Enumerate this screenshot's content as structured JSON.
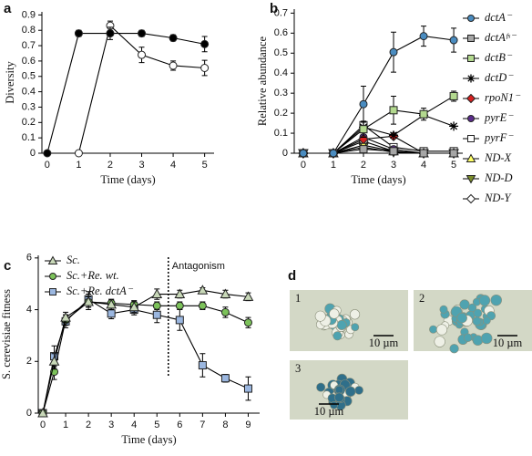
{
  "chart_data": [
    {
      "type": "line",
      "label": "a",
      "xlabel": "Time (days)",
      "ylabel": "Diversity",
      "x": [
        0,
        1,
        2,
        3,
        4,
        5
      ],
      "xlim": [
        -0.17,
        5.3
      ],
      "xticks": [
        0,
        1,
        2,
        3,
        4,
        5
      ],
      "ylim": [
        0,
        0.92
      ],
      "yticks": [
        0,
        0.1,
        0.2,
        0.3,
        0.4,
        0.5,
        0.6,
        0.7,
        0.8,
        0.9
      ],
      "series": [
        {
          "color": "#000000",
          "marker": "circle",
          "values": [
            0,
            0.78,
            0.78,
            0.78,
            0.75,
            0.71
          ],
          "errors": [
            0,
            0.02,
            0.04,
            0.02,
            0.02,
            0.05
          ]
        },
        {
          "color": "#ffffff",
          "marker": "circle",
          "values": [
            null,
            0,
            0.83,
            0.64,
            0.57,
            0.555
          ],
          "errors": [
            null,
            0,
            0.03,
            0.05,
            0.03,
            0.05
          ]
        }
      ]
    },
    {
      "type": "line",
      "label": "b",
      "xlabel": "Time (days)",
      "ylabel": "Relative abundance",
      "x": [
        0,
        1,
        2,
        3,
        4,
        5
      ],
      "xlim": [
        -0.3,
        5.3
      ],
      "xticks": [
        0,
        1,
        2,
        3,
        4,
        5
      ],
      "ylim": [
        0,
        0.72
      ],
      "yticks": [
        0,
        0.1,
        0.2,
        0.3,
        0.4,
        0.5,
        0.6,
        0.7
      ],
      "series": [
        {
          "name": "dctA⁻",
          "color": "#4a8cc0",
          "marker": "circle",
          "values": [
            0,
            0,
            0.245,
            0.505,
            0.585,
            0.565
          ],
          "errors": [
            0,
            0,
            0.09,
            0.1,
            0.05,
            0.06
          ]
        },
        {
          "name": "dctAᶠˢ⁻",
          "color": "#a6a6a6",
          "marker": "square",
          "values": [
            0,
            0,
            0.02,
            0.01,
            0,
            0
          ]
        },
        {
          "name": "dctB⁻",
          "color": "#b3d98f",
          "marker": "square",
          "values": [
            0,
            0,
            0.12,
            0.215,
            0.195,
            0.285
          ],
          "errors": [
            0,
            0,
            0.04,
            0.07,
            0.03,
            0.025
          ]
        },
        {
          "name": "dctD⁻",
          "color": "#000000",
          "marker": "star",
          "values": [
            0,
            0,
            0.13,
            0.09,
            0.19,
            0.135
          ]
        },
        {
          "name": "rpoN1⁻",
          "color": "#d62020",
          "marker": "diamond",
          "values": [
            0,
            0,
            0.07,
            0.085,
            0,
            0
          ]
        },
        {
          "name": "pyrE⁻",
          "color": "#5b2c8c",
          "marker": "circle",
          "values": [
            0,
            0,
            0.08,
            0.02,
            0,
            0
          ]
        },
        {
          "name": "pyrF⁻",
          "color": "#ffffff",
          "marker": "square",
          "values": [
            0,
            0,
            0.14,
            0.03,
            0.01,
            0.01
          ]
        },
        {
          "name": "ND-X",
          "color": "#ffff66",
          "marker": "triangle",
          "values": [
            0,
            0,
            0.04,
            0.01,
            0,
            0
          ]
        },
        {
          "name": "ND-D",
          "color": "#7a8c2a",
          "marker": "triangle-down",
          "values": [
            0,
            0,
            0.03,
            0.005,
            0,
            0
          ]
        },
        {
          "name": "ND-Y",
          "color": "#ffffff",
          "marker": "diamond",
          "values": [
            0,
            0,
            0.06,
            0.01,
            0,
            0
          ]
        }
      ]
    },
    {
      "type": "line",
      "label": "c",
      "xlabel": "Time (days)",
      "ylabel": "S. cerevisiae fitness",
      "x": [
        0,
        0.5,
        1,
        2,
        3,
        4,
        5,
        6,
        7,
        8,
        9
      ],
      "xlim": [
        -0.2,
        9.5
      ],
      "xticks": [
        0,
        1,
        2,
        3,
        4,
        5,
        6,
        7,
        8,
        9
      ],
      "ylim": [
        0,
        6.1
      ],
      "yticks": [
        0,
        2,
        4,
        6
      ],
      "annotation": {
        "text": "Antagonism",
        "x": 5.5
      },
      "series": [
        {
          "name": "Sc.",
          "color": "#c8d8b8",
          "marker": "triangle",
          "values": [
            0,
            2.0,
            3.7,
            4.3,
            4.2,
            4.1,
            4.6,
            4.6,
            4.75,
            4.6,
            4.5
          ],
          "errors": [
            0,
            0.3,
            0.2,
            0.3,
            0.2,
            0.2,
            0.2,
            0.15,
            0.1,
            0.15,
            0.15
          ]
        },
        {
          "name": "Sc.+Re. wt.",
          "color": "#7cc25a",
          "marker": "circle",
          "values": [
            0,
            1.6,
            3.6,
            4.3,
            4.25,
            4.2,
            4.15,
            4.15,
            4.15,
            3.9,
            3.5
          ],
          "errors": [
            0,
            0.3,
            0.2,
            0.2,
            0.15,
            0.15,
            0.15,
            0.15,
            0.15,
            0.2,
            0.2
          ]
        },
        {
          "name": "Sc.+Re. dctA⁻",
          "color": "#9bb7e0",
          "marker": "square",
          "values": [
            0,
            2.2,
            3.55,
            4.4,
            3.85,
            4.0,
            3.8,
            3.6,
            1.85,
            1.35,
            0.95
          ],
          "errors": [
            0,
            0.4,
            0.25,
            0.3,
            0.2,
            0.2,
            0.3,
            0.4,
            0.45,
            0.15,
            0.45
          ]
        }
      ]
    }
  ],
  "image_panel": {
    "label": "d",
    "images": [
      {
        "label": "1",
        "scale": "10 µm"
      },
      {
        "label": "2",
        "scale": "10 µm"
      },
      {
        "label": "3",
        "scale": "10 µm"
      }
    ]
  }
}
